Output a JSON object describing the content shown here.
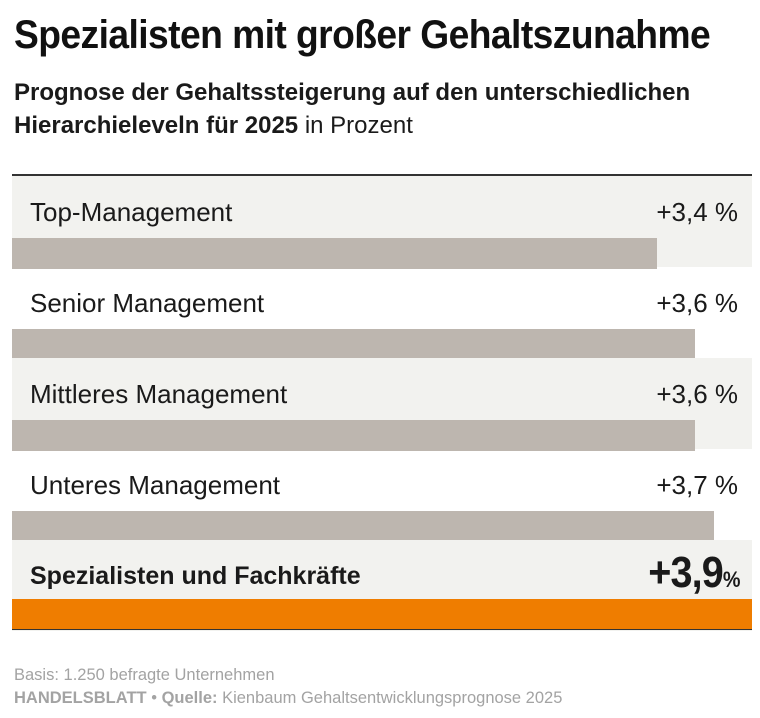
{
  "header": {
    "title": "Spezialisten mit großer Gehaltszunahme",
    "subtitle_bold": "Prognose der Gehaltssteigerung auf den unterschiedlichen Hierarchieleveln für 2025",
    "subtitle_unit": " in Prozent"
  },
  "chart_data": {
    "type": "bar",
    "orientation": "horizontal",
    "title": "Spezialisten mit großer Gehaltszunahme",
    "subtitle": "Prognose der Gehaltssteigerung auf den unterschiedlichen Hierarchieleveln für 2025 in Prozent",
    "categories": [
      "Top-Management",
      "Senior Management",
      "Mittleres Management",
      "Unteres Management",
      "Spezialisten und Fachkräfte"
    ],
    "values": [
      3.4,
      3.6,
      3.6,
      3.7,
      3.9
    ],
    "value_labels": [
      "+3,4 %",
      "+3,6 %",
      "+3,6 %",
      "+3,7 %",
      "+3,9"
    ],
    "highlight_suffix": "%",
    "highlight_index": 4,
    "bar_color": "#bdb6af",
    "highlight_color": "#ef7d00",
    "xlim": [
      0,
      3.9
    ]
  },
  "footer": {
    "basis": "Basis: 1.250 befragte Unternehmen",
    "brand": "HANDELSBLATT",
    "separator": " • ",
    "source_label": "Quelle:",
    "source_text": " Kienbaum Gehaltsentwicklungsprognose 2025"
  }
}
